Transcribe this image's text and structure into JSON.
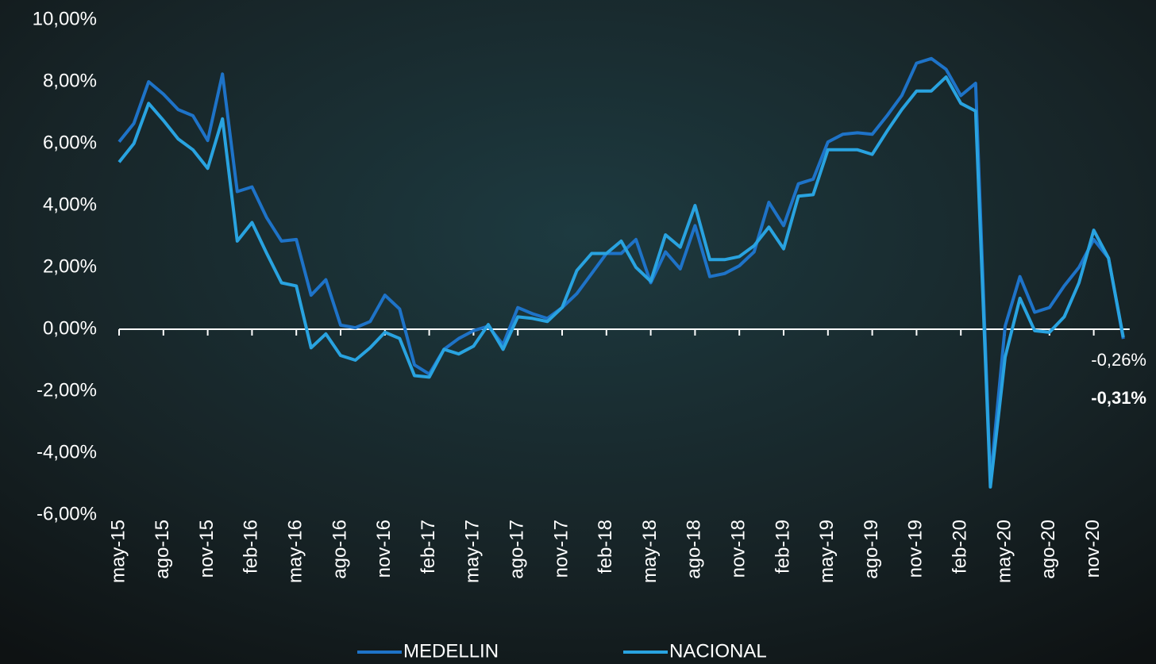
{
  "chart_data": {
    "type": "line",
    "categories": [
      "may-15",
      null,
      null,
      "ago-15",
      null,
      null,
      "nov-15",
      null,
      null,
      "feb-16",
      null,
      null,
      "may-16",
      null,
      null,
      "ago-16",
      null,
      null,
      "nov-16",
      null,
      null,
      "feb-17",
      null,
      null,
      "may-17",
      null,
      null,
      "ago-17",
      null,
      null,
      "nov-17",
      null,
      null,
      "feb-18",
      null,
      null,
      "may-18",
      null,
      null,
      "ago-18",
      null,
      null,
      "nov-18",
      null,
      null,
      "feb-19",
      null,
      null,
      "may-19",
      null,
      null,
      "ago-19",
      null,
      null,
      "nov-19",
      null,
      null,
      "feb-20",
      null,
      null,
      "may-20",
      null,
      null,
      "ago-20",
      null,
      null,
      "nov-20",
      null,
      null
    ],
    "series": [
      {
        "name": "MEDELLIN",
        "color": "#1e73c8",
        "values": [
          6.06,
          6.65,
          8.0,
          7.6,
          7.1,
          6.9,
          6.1,
          8.25,
          4.45,
          4.6,
          3.6,
          2.85,
          2.9,
          1.1,
          1.6,
          0.13,
          0.05,
          0.25,
          1.1,
          0.65,
          -1.15,
          -1.45,
          -0.65,
          -0.3,
          -0.05,
          0.1,
          -0.5,
          0.7,
          0.5,
          0.35,
          0.7,
          1.15,
          1.8,
          2.45,
          2.45,
          2.9,
          1.5,
          2.5,
          1.95,
          3.35,
          1.7,
          1.8,
          2.05,
          2.5,
          4.1,
          3.35,
          4.7,
          4.85,
          6.05,
          6.3,
          6.35,
          6.3,
          6.9,
          7.55,
          8.6,
          8.75,
          8.4,
          7.55,
          7.95,
          -4.9,
          0.1,
          1.7,
          0.55,
          0.7,
          1.4,
          2.0,
          2.9,
          2.3,
          -0.31
        ],
        "value_labels": [
          null,
          null,
          null,
          null,
          null,
          null,
          null,
          null,
          null,
          null,
          null,
          null,
          null,
          null,
          null,
          null,
          null,
          null,
          null,
          null,
          null,
          null,
          null,
          null,
          null,
          null,
          null,
          null,
          null,
          null,
          null,
          null,
          null,
          null,
          null,
          null,
          null,
          null,
          null,
          null,
          null,
          null,
          null,
          null,
          null,
          null,
          null,
          null,
          null,
          null,
          null,
          null,
          null,
          null,
          null,
          null,
          null,
          null,
          null,
          null,
          null,
          null,
          null,
          null,
          null,
          null,
          null,
          null,
          "-0,31%"
        ]
      },
      {
        "name": "NACIONAL",
        "color": "#29a3e0",
        "values": [
          5.4,
          6.0,
          7.3,
          6.75,
          6.15,
          5.8,
          5.2,
          6.8,
          2.85,
          3.45,
          2.45,
          1.5,
          1.4,
          -0.6,
          -0.15,
          -0.85,
          -1.0,
          -0.6,
          -0.1,
          -0.3,
          -1.5,
          -1.55,
          -0.65,
          -0.8,
          -0.55,
          0.15,
          -0.65,
          0.4,
          0.35,
          0.25,
          0.7,
          1.9,
          2.45,
          2.45,
          2.85,
          2.0,
          1.55,
          3.05,
          2.65,
          4.0,
          2.25,
          2.25,
          2.35,
          2.7,
          3.3,
          2.6,
          4.3,
          4.35,
          5.8,
          5.8,
          5.8,
          5.65,
          6.4,
          7.1,
          7.7,
          7.7,
          8.15,
          7.3,
          7.05,
          -5.1,
          -0.9,
          1.0,
          -0.05,
          -0.1,
          0.4,
          1.5,
          3.2,
          2.3,
          -0.26
        ],
        "value_labels": [
          null,
          null,
          null,
          null,
          null,
          null,
          null,
          null,
          null,
          null,
          null,
          null,
          null,
          null,
          null,
          null,
          null,
          null,
          null,
          null,
          null,
          null,
          null,
          null,
          null,
          null,
          null,
          null,
          null,
          null,
          null,
          null,
          null,
          null,
          null,
          null,
          null,
          null,
          null,
          null,
          null,
          null,
          null,
          null,
          null,
          null,
          null,
          null,
          null,
          null,
          null,
          null,
          null,
          null,
          null,
          null,
          null,
          null,
          null,
          null,
          null,
          null,
          null,
          null,
          null,
          null,
          null,
          null,
          "-0,26%"
        ]
      }
    ],
    "ylim": [
      -6,
      10
    ],
    "yticks": [
      {
        "value": -6,
        "label": "-6,00%"
      },
      {
        "value": -4,
        "label": "-4,00%"
      },
      {
        "value": -2,
        "label": "-2,00%"
      },
      {
        "value": 0,
        "label": "0,00%"
      },
      {
        "value": 2,
        "label": "2,00%"
      },
      {
        "value": 4,
        "label": "4,00%"
      },
      {
        "value": 6,
        "label": "6,00%"
      },
      {
        "value": 8,
        "label": "8,00%"
      },
      {
        "value": 10,
        "label": "10,00%"
      }
    ],
    "legend": "bottom"
  }
}
